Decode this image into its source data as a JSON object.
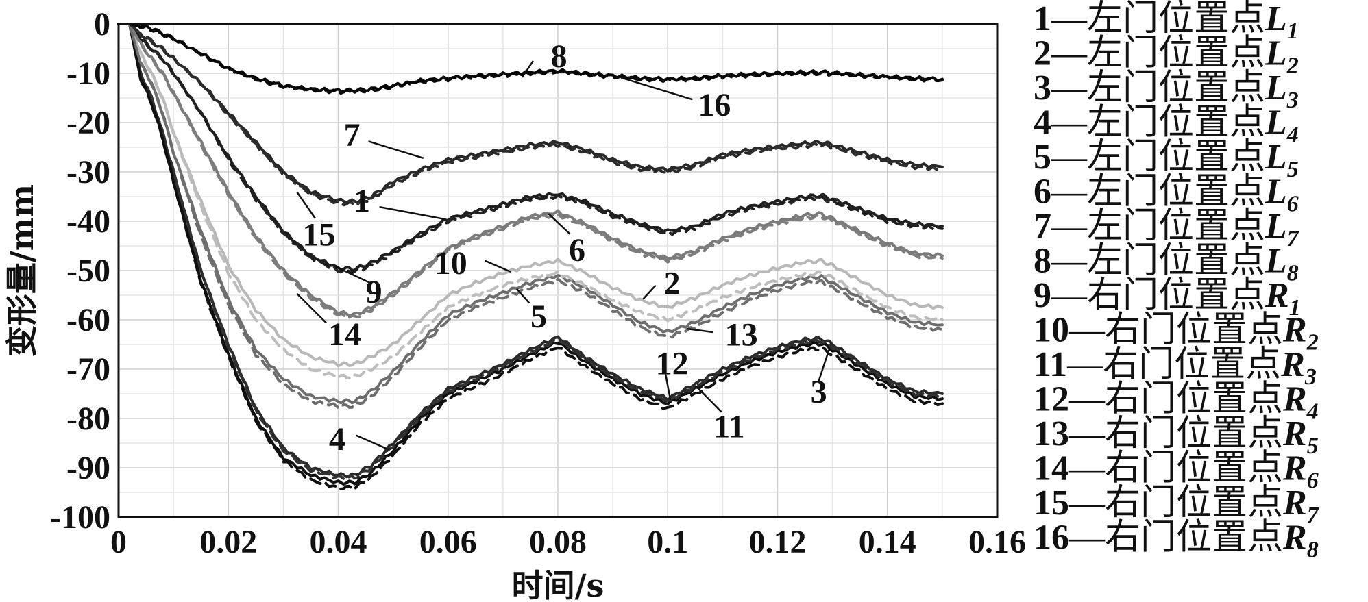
{
  "chart_data": {
    "type": "line",
    "xlabel": "时间/s",
    "ylabel": "变形量/mm",
    "xlim": [
      0,
      0.16
    ],
    "ylim": [
      -100,
      0
    ],
    "xticks": [
      "0",
      "0.02",
      "0.04",
      "0.06",
      "0.08",
      "0.1",
      "0.12",
      "0.14",
      "0.16"
    ],
    "yticks": [
      "0",
      "-10",
      "-20",
      "-30",
      "-40",
      "-50",
      "-60",
      "-70",
      "-80",
      "-90",
      "-100"
    ],
    "grid": true,
    "legend_position": "right, outside plot",
    "x": [
      0.002,
      0.004,
      0.006,
      0.008,
      0.01,
      0.015,
      0.02,
      0.025,
      0.03,
      0.035,
      0.04,
      0.043,
      0.046,
      0.05,
      0.055,
      0.06,
      0.065,
      0.07,
      0.075,
      0.08,
      0.085,
      0.09,
      0.095,
      0.1,
      0.105,
      0.11,
      0.115,
      0.12,
      0.125,
      0.128,
      0.13,
      0.135,
      0.14,
      0.145,
      0.15
    ],
    "series": [
      {
        "name": "1—左门位置点L1",
        "label": "1",
        "color": "#202020",
        "dashed": false,
        "values": [
          0,
          -3,
          -5,
          -7,
          -10,
          -18,
          -27,
          -35,
          -42,
          -47,
          -49.5,
          -49.7,
          -48.5,
          -46,
          -42.5,
          -39.5,
          -38,
          -36.5,
          -35,
          -34.5,
          -36,
          -38.5,
          -40.5,
          -42,
          -41,
          -38.5,
          -37,
          -36,
          -35,
          -34.8,
          -35.5,
          -37.5,
          -39.5,
          -40.5,
          -41
        ]
      },
      {
        "name": "2—左门位置点L2",
        "label": "2",
        "color": "#b8b8b8",
        "dashed": false,
        "values": [
          0,
          -6,
          -10,
          -15,
          -22,
          -36,
          -49,
          -58,
          -64,
          -67.5,
          -69,
          -69,
          -67.5,
          -65,
          -60,
          -55,
          -52.5,
          -50.5,
          -49,
          -48,
          -50.5,
          -53.5,
          -56,
          -57.5,
          -55.5,
          -53,
          -51,
          -49.5,
          -48.3,
          -48,
          -49,
          -52,
          -55,
          -57,
          -57.5
        ]
      },
      {
        "name": "3—左门位置点L3",
        "label": "3",
        "color": "#2a2a2a",
        "dashed": false,
        "values": [
          0,
          -10,
          -15,
          -22,
          -30,
          -50,
          -65,
          -78,
          -86,
          -90,
          -91.5,
          -91.5,
          -89.5,
          -85,
          -79,
          -74,
          -71.5,
          -69,
          -66,
          -63.5,
          -67.5,
          -71,
          -74,
          -76,
          -73,
          -70,
          -67.5,
          -65.5,
          -64,
          -63.8,
          -65,
          -68.5,
          -72,
          -74.5,
          -75
        ]
      },
      {
        "name": "4—左门位置点L4",
        "label": "4",
        "color": "#101010",
        "dashed": false,
        "values": [
          0,
          -11,
          -16,
          -23,
          -32,
          -52,
          -67,
          -80,
          -88,
          -91.5,
          -93,
          -93,
          -91,
          -86.5,
          -80,
          -75,
          -72.5,
          -70,
          -67,
          -64.5,
          -68.5,
          -72,
          -75,
          -77,
          -74,
          -71,
          -68.5,
          -66.5,
          -65,
          -64.8,
          -66,
          -69.5,
          -73,
          -75.5,
          -76
        ]
      },
      {
        "name": "5—左门位置点L5",
        "label": "5",
        "color": "#6e6e6e",
        "dashed": false,
        "values": [
          0,
          -8,
          -12,
          -18,
          -26,
          -42,
          -56,
          -66,
          -72,
          -75.5,
          -76.5,
          -76.5,
          -74.5,
          -70.5,
          -64.5,
          -59,
          -56.5,
          -54.5,
          -52.5,
          -51,
          -53.5,
          -57,
          -60.5,
          -62.5,
          -60.5,
          -57.5,
          -55,
          -53,
          -51.5,
          -51.3,
          -52.5,
          -55.5,
          -58.5,
          -60.5,
          -61
        ]
      },
      {
        "name": "6—左门位置点L6",
        "label": "6",
        "color": "#7a7a7a",
        "dashed": false,
        "values": [
          0,
          -4,
          -7,
          -10,
          -14,
          -24,
          -34,
          -43,
          -50,
          -55,
          -58.5,
          -59,
          -57.5,
          -54.5,
          -50,
          -45.5,
          -43,
          -41,
          -39,
          -38.2,
          -40.5,
          -43.5,
          -46,
          -47.5,
          -46,
          -43.5,
          -41.5,
          -40,
          -38.8,
          -38.5,
          -39.5,
          -42,
          -44.5,
          -46.5,
          -47
        ]
      },
      {
        "name": "7—左门位置点L7",
        "label": "7",
        "color": "#282828",
        "dashed": false,
        "values": [
          0,
          -2,
          -3.5,
          -5,
          -7,
          -12,
          -18,
          -24,
          -30,
          -34,
          -35.8,
          -36,
          -35,
          -32,
          -29.5,
          -27.5,
          -26.5,
          -25.5,
          -24.5,
          -24,
          -25.5,
          -27.5,
          -29,
          -29.5,
          -28.5,
          -26.5,
          -25.5,
          -24.8,
          -24.2,
          -24,
          -24.5,
          -26,
          -27.5,
          -28.5,
          -29
        ]
      },
      {
        "name": "8—左门位置点L8",
        "label": "8",
        "color": "#080808",
        "dashed": false,
        "values": [
          0,
          -0.5,
          -1,
          -2,
          -3,
          -6,
          -9,
          -11,
          -12.5,
          -13.2,
          -13.5,
          -13.5,
          -13.2,
          -12.5,
          -11.5,
          -11,
          -10.5,
          -10.2,
          -9.8,
          -9.5,
          -10,
          -10.5,
          -11,
          -11.2,
          -11,
          -10.5,
          -10.2,
          -10,
          -9.8,
          -9.8,
          -9.9,
          -10.3,
          -10.7,
          -11,
          -11.2
        ]
      },
      {
        "name": "9—右门位置点R1",
        "label": "9",
        "color": "#202020",
        "dashed": true,
        "values": [
          0,
          -3,
          -5,
          -7,
          -10,
          -18,
          -27.5,
          -35.5,
          -42.5,
          -47.5,
          -50,
          -50.2,
          -49,
          -46.5,
          -43,
          -40,
          -38.5,
          -37,
          -35.5,
          -35,
          -36.5,
          -39,
          -41,
          -42.5,
          -41.5,
          -39,
          -37.5,
          -36.5,
          -35.5,
          -35.3,
          -36,
          -38,
          -40,
          -41,
          -41.5
        ]
      },
      {
        "name": "10—右门位置点R2",
        "label": "10",
        "color": "#bdbdbd",
        "dashed": true,
        "values": [
          0,
          -6,
          -10,
          -15,
          -22,
          -37,
          -50.5,
          -60,
          -66,
          -70,
          -71.5,
          -71.5,
          -70,
          -67.5,
          -62.5,
          -57.5,
          -55,
          -53,
          -51.5,
          -50.5,
          -53,
          -56,
          -58.5,
          -60,
          -58,
          -55.5,
          -53.5,
          -52,
          -50.8,
          -50.5,
          -51.5,
          -54.5,
          -57.5,
          -59.5,
          -60
        ]
      },
      {
        "name": "11—右门位置点R3",
        "label": "11",
        "color": "#303030",
        "dashed": true,
        "values": [
          0,
          -10,
          -15,
          -22,
          -30,
          -50,
          -65.5,
          -78.5,
          -86.5,
          -90.5,
          -92,
          -92,
          -90,
          -85.5,
          -79.5,
          -74.5,
          -72,
          -69.5,
          -66.5,
          -64,
          -68,
          -71.5,
          -74.5,
          -76.5,
          -73.5,
          -70.5,
          -68,
          -66,
          -64.5,
          -64.3,
          -65.5,
          -69,
          -72.5,
          -75,
          -75.5
        ]
      },
      {
        "name": "12—右门位置点R4",
        "label": "12",
        "color": "#101010",
        "dashed": true,
        "values": [
          0,
          -11,
          -16,
          -23,
          -32,
          -52.5,
          -67.5,
          -80.5,
          -88.5,
          -92.5,
          -94,
          -94,
          -92,
          -87.5,
          -81,
          -76,
          -73.5,
          -71,
          -68,
          -65.5,
          -69.5,
          -73,
          -76,
          -78,
          -75,
          -72,
          -69.5,
          -67.5,
          -66,
          -65.8,
          -67,
          -70.5,
          -74,
          -76.5,
          -77
        ]
      },
      {
        "name": "13—右门位置点R5",
        "label": "13",
        "color": "#6e6e6e",
        "dashed": true,
        "values": [
          0,
          -8,
          -12,
          -18,
          -26,
          -43,
          -57,
          -67,
          -73,
          -76.5,
          -77.5,
          -77.5,
          -75.5,
          -71.5,
          -65.5,
          -60,
          -57.5,
          -55.5,
          -53.5,
          -52,
          -54.5,
          -58,
          -61.5,
          -63.5,
          -61.5,
          -58.5,
          -56,
          -54,
          -52.5,
          -52.3,
          -53.5,
          -56.5,
          -59.5,
          -61.5,
          -62
        ]
      },
      {
        "name": "14—右门位置点R6",
        "label": "14",
        "color": "#7d7d7d",
        "dashed": true,
        "values": [
          0,
          -4,
          -7,
          -10,
          -14,
          -24.5,
          -34.5,
          -43.5,
          -50.5,
          -55.5,
          -59,
          -59.5,
          -58,
          -55,
          -50.5,
          -46,
          -43.5,
          -41.5,
          -39.5,
          -38.7,
          -41,
          -44,
          -46.5,
          -48,
          -46.5,
          -44,
          -42,
          -40.5,
          -39.3,
          -39,
          -40,
          -42.5,
          -45,
          -47,
          -47.5
        ]
      },
      {
        "name": "15—右门位置点R7",
        "label": "15",
        "color": "#2c2c2c",
        "dashed": true,
        "values": [
          0,
          -2,
          -3.5,
          -5,
          -7,
          -12,
          -18.5,
          -24.5,
          -30.5,
          -34.5,
          -36.3,
          -36.5,
          -35.5,
          -32.5,
          -30,
          -28,
          -27,
          -26,
          -25,
          -24.5,
          -26,
          -28,
          -29.5,
          -30,
          -29,
          -27,
          -26,
          -25.3,
          -24.7,
          -24.5,
          -25,
          -26.5,
          -28,
          -29,
          -29.5
        ]
      },
      {
        "name": "16—右门位置点R8",
        "label": "16",
        "color": "#080808",
        "dashed": true,
        "values": [
          0,
          -0.5,
          -1,
          -2,
          -3,
          -6,
          -9.2,
          -11.2,
          -12.7,
          -13.4,
          -13.7,
          -13.7,
          -13.4,
          -12.7,
          -11.7,
          -11.2,
          -10.7,
          -10.4,
          -10,
          -9.7,
          -10.2,
          -10.7,
          -11.2,
          -11.4,
          -11.2,
          -10.7,
          -10.4,
          -10.2,
          -10,
          -10,
          -10.1,
          -10.5,
          -10.9,
          -11.2,
          -11.4
        ]
      }
    ],
    "callouts": [
      {
        "label": "8",
        "text_at": [
          0.0802,
          -6.5
        ],
        "line_from": [
          0.0755,
          -7.5
        ],
        "line_to": [
          0.0735,
          -10.8
        ]
      },
      {
        "label": "16",
        "text_at": [
          0.1085,
          -16.4
        ],
        "line_from": [
          0.1045,
          -15.3
        ],
        "line_to": [
          0.0915,
          -10.9
        ]
      },
      {
        "label": "7",
        "text_at": [
          0.0425,
          -22.5
        ],
        "line_from": [
          0.0455,
          -23.8
        ],
        "line_to": [
          0.0555,
          -27.2
        ]
      },
      {
        "label": "15",
        "text_at": [
          0.0365,
          -42.7
        ],
        "line_from": [
          0.0358,
          -39.4
        ],
        "line_to": [
          0.0325,
          -34.1
        ]
      },
      {
        "label": "1",
        "text_at": [
          0.0443,
          -35.8
        ],
        "line_from": [
          0.0475,
          -37.1
        ],
        "line_to": [
          0.0595,
          -39.6
        ]
      },
      {
        "label": "9",
        "text_at": [
          0.0465,
          -54.3
        ],
        "line_from": [
          0.0458,
          -52.5
        ],
        "line_to": [
          0.0395,
          -49.2
        ]
      },
      {
        "label": "6",
        "text_at": [
          0.0835,
          -45.8
        ],
        "line_from": [
          0.0822,
          -42.6
        ],
        "line_to": [
          0.0783,
          -38.5
        ]
      },
      {
        "label": "10",
        "text_at": [
          0.0605,
          -48.5
        ],
        "line_from": [
          0.0667,
          -48.0
        ],
        "line_to": [
          0.0715,
          -50.3
        ]
      },
      {
        "label": "2",
        "text_at": [
          0.1008,
          -52.6
        ],
        "line_from": [
          0.0978,
          -53.0
        ],
        "line_to": [
          0.0955,
          -55.8
        ]
      },
      {
        "label": "5",
        "text_at": [
          0.0765,
          -59.3
        ],
        "line_from": [
          0.0748,
          -56.6
        ],
        "line_to": [
          0.0725,
          -53.7
        ]
      },
      {
        "label": "14",
        "text_at": [
          0.0412,
          -62.9
        ],
        "line_from": [
          0.0378,
          -60.6
        ],
        "line_to": [
          0.0325,
          -54.7
        ]
      },
      {
        "label": "13",
        "text_at": [
          0.1134,
          -63.0
        ],
        "line_from": [
          0.1082,
          -62.5
        ],
        "line_to": [
          0.1035,
          -61.8
        ]
      },
      {
        "label": "12",
        "text_at": [
          0.1008,
          -68.8
        ],
        "line_from": [
          0.0995,
          -70.4
        ],
        "line_to": [
          0.1005,
          -76.3
        ]
      },
      {
        "label": "3",
        "text_at": [
          0.1275,
          -74.6
        ],
        "line_from": [
          0.1275,
          -72.4
        ],
        "line_to": [
          0.1295,
          -65.6
        ]
      },
      {
        "label": "11",
        "text_at": [
          0.1112,
          -81.6
        ],
        "line_from": [
          0.1098,
          -78.7
        ],
        "line_to": [
          0.1052,
          -73.5
        ]
      },
      {
        "label": "4",
        "text_at": [
          0.0398,
          -84.2
        ],
        "line_from": [
          0.0432,
          -83.4
        ],
        "line_to": [
          0.0492,
          -86.3
        ]
      }
    ]
  },
  "legend": {
    "entries": [
      {
        "num": "1",
        "text": "—左门位置点",
        "var": "L",
        "sub": "1"
      },
      {
        "num": "2",
        "text": "—左门位置点",
        "var": "L",
        "sub": "2"
      },
      {
        "num": "3",
        "text": "—左门位置点",
        "var": "L",
        "sub": "3"
      },
      {
        "num": "4",
        "text": "—左门位置点",
        "var": "L",
        "sub": "4"
      },
      {
        "num": "5",
        "text": "—左门位置点",
        "var": "L",
        "sub": "5"
      },
      {
        "num": "6",
        "text": "—左门位置点",
        "var": "L",
        "sub": "6"
      },
      {
        "num": "7",
        "text": "—左门位置点",
        "var": "L",
        "sub": "7"
      },
      {
        "num": "8",
        "text": "—左门位置点",
        "var": "L",
        "sub": "8"
      },
      {
        "num": "9",
        "text": "—右门位置点",
        "var": "R",
        "sub": "1"
      },
      {
        "num": "10",
        "text": "—右门位置点",
        "var": "R",
        "sub": "2"
      },
      {
        "num": "11",
        "text": "—右门位置点",
        "var": "R",
        "sub": "3"
      },
      {
        "num": "12",
        "text": "—右门位置点",
        "var": "R",
        "sub": "4"
      },
      {
        "num": "13",
        "text": "—右门位置点",
        "var": "R",
        "sub": "5"
      },
      {
        "num": "14",
        "text": "—右门位置点",
        "var": "R",
        "sub": "6"
      },
      {
        "num": "15",
        "text": "—右门位置点",
        "var": "R",
        "sub": "7"
      },
      {
        "num": "16",
        "text": "—右门位置点",
        "var": "R",
        "sub": "8"
      }
    ]
  }
}
